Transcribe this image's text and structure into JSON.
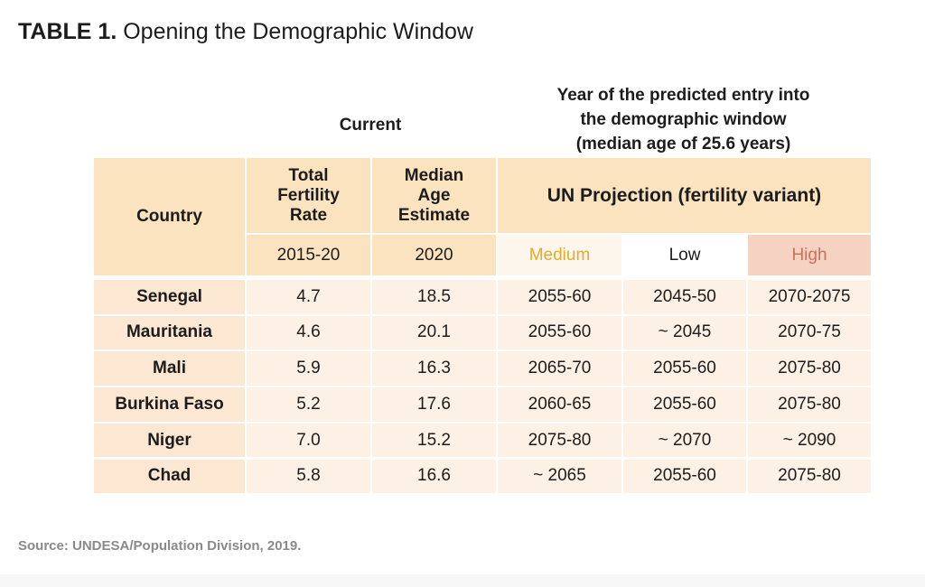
{
  "title": {
    "number": "TABLE 1.",
    "text": "Opening the Demographic Window"
  },
  "header": {
    "current": "Current",
    "year_lines": [
      "Year of the predicted entry into",
      "the demographic window",
      "(median age of 25.6 years)"
    ],
    "country": "Country",
    "tfr_lines": [
      "Total",
      "Fertility",
      "Rate"
    ],
    "median_lines": [
      "Median",
      "Age",
      "Estimate"
    ],
    "un_projection": "UN Projection (fertility variant)",
    "tfr_period": "2015-20",
    "median_year": "2020",
    "medium": "Medium",
    "low": "Low",
    "high": "High"
  },
  "rows": [
    {
      "country": "Senegal",
      "tfr": "4.7",
      "median": "18.5",
      "medium": "2055-60",
      "low": "2045-50",
      "high": "2070-2075"
    },
    {
      "country": "Mauritania",
      "tfr": "4.6",
      "median": "20.1",
      "medium": "2055-60",
      "low": "~ 2045",
      "high": "2070-75"
    },
    {
      "country": "Mali",
      "tfr": "5.9",
      "median": "16.3",
      "medium": "2065-70",
      "low": "2055-60",
      "high": "2075-80"
    },
    {
      "country": "Burkina Faso",
      "tfr": "5.2",
      "median": "17.6",
      "medium": "2060-65",
      "low": "2055-60",
      "high": "2075-80"
    },
    {
      "country": "Niger",
      "tfr": "7.0",
      "median": "15.2",
      "medium": "2075-80",
      "low": "~ 2070",
      "high": "~ 2090"
    },
    {
      "country": "Chad",
      "tfr": "5.8",
      "median": "16.6",
      "medium": "~ 2065",
      "low": "2055-60",
      "high": "2075-80"
    }
  ],
  "source": "Source: UNDESA/Population Division, 2019.",
  "colors": {
    "header_bg": "#fbe3bf",
    "medium": "#e8a92a",
    "high_bg": "#f5d2c2",
    "high_text": "#c7725e"
  }
}
